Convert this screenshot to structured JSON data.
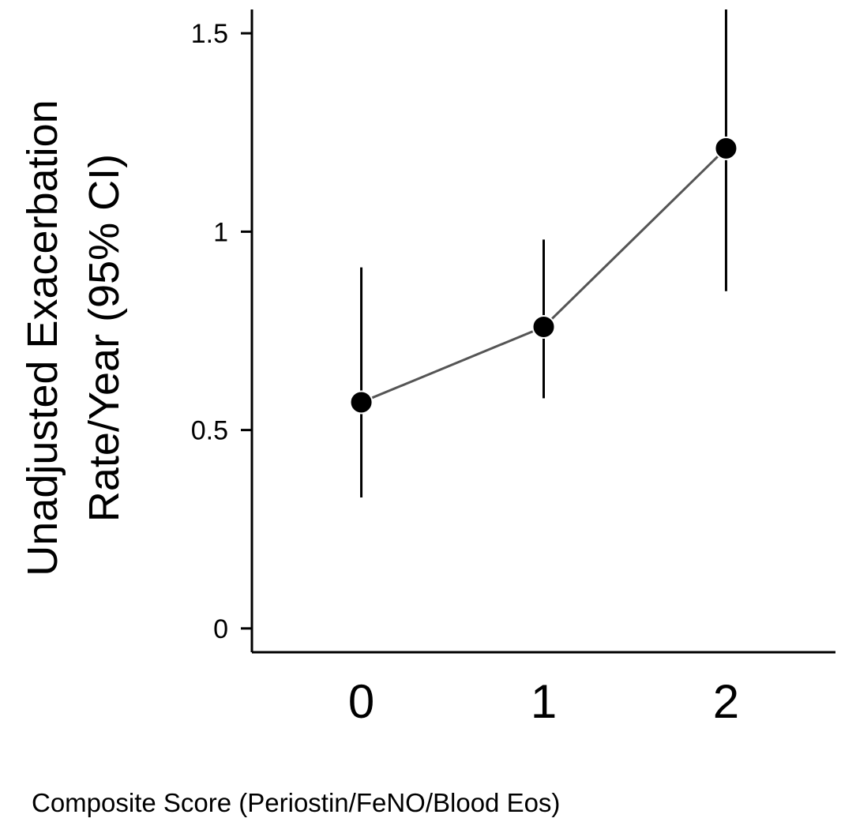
{
  "chart_data": {
    "type": "scatter",
    "x": [
      0,
      1,
      2
    ],
    "x_tick_labels": [
      "0",
      "1",
      "2"
    ],
    "y": [
      0.57,
      0.76,
      1.21
    ],
    "ci_lower": [
      0.33,
      0.58,
      0.85
    ],
    "ci_upper": [
      0.91,
      0.98,
      1.56
    ],
    "y_ticks": [
      0,
      0.5,
      1,
      1.5
    ],
    "y_tick_labels": [
      "0",
      "0.5",
      "1",
      "1.5"
    ],
    "ylim": [
      -0.06,
      1.56
    ],
    "xlim": [
      -0.6,
      2.6
    ],
    "ylabel_line1": "Unadjusted Exacerbation",
    "ylabel_line2": "Rate/Year (95% CI)",
    "xlabel": "Composite Score (Periostin/FeNO/Blood Eos)",
    "connected": true,
    "grid": false,
    "point_color": "#000000",
    "line_color": "#555555"
  }
}
